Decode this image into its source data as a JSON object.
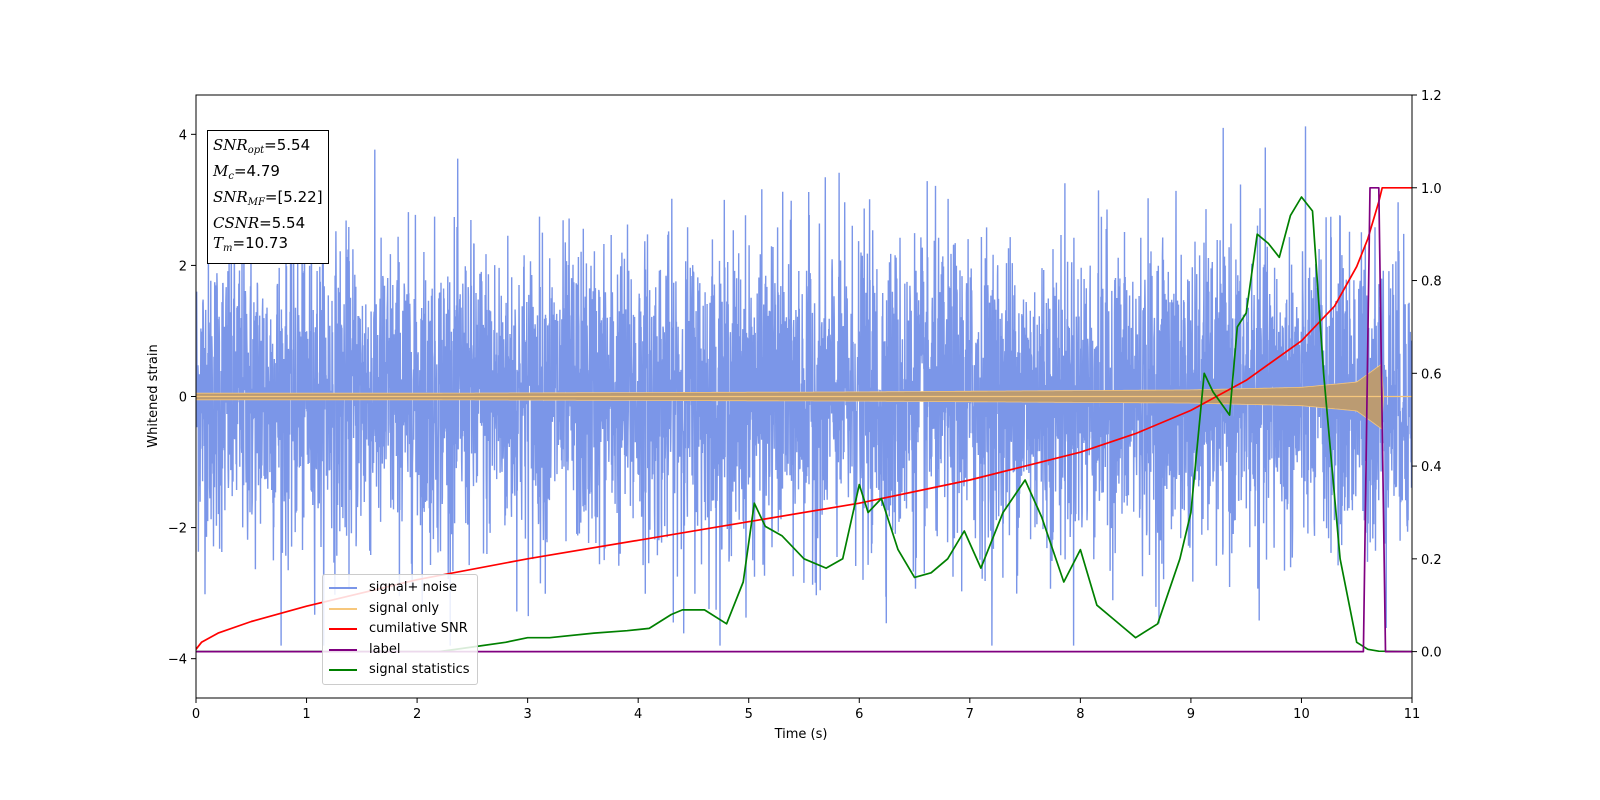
{
  "colors": {
    "signal_noise": "#7b96e8",
    "signal_only": "#f7c77c",
    "overlap": "#bb9b72",
    "cumulative_snr": "#ff0000",
    "label": "#800080",
    "signal_statistics": "#008000"
  },
  "infobox": {
    "snr_opt": {
      "name": "SNR",
      "sub": "opt",
      "value": "=5.54"
    },
    "mc": {
      "name": "M",
      "sub": "c",
      "value": "=4.79"
    },
    "snr_mf": {
      "name": "SNR",
      "sub": "MF",
      "value": "=[5.22]"
    },
    "csnr": {
      "name": "CSNR",
      "value": "=5.54"
    },
    "tm": {
      "name": "T",
      "sub": "m",
      "value": "=10.73"
    }
  },
  "chart_data": {
    "type": "line",
    "xlabel": "Time (s)",
    "ylabel": "Whitened strain",
    "xlim": [
      0,
      11
    ],
    "ylim": [
      -4.6,
      4.6
    ],
    "y2lim": [
      -0.1,
      1.2
    ],
    "xticks": [
      "0",
      "1",
      "2",
      "3",
      "4",
      "5",
      "6",
      "7",
      "8",
      "9",
      "10",
      "11"
    ],
    "yticks": [
      "−4",
      "−2",
      "0",
      "2",
      "4"
    ],
    "y2ticks": [
      "0.0",
      "0.2",
      "0.4",
      "0.6",
      "0.8",
      "1.0",
      "1.2"
    ],
    "legend_position": "lower-left",
    "series": [
      {
        "name": "signal+ noise",
        "axis": "left",
        "description_range": [
          -3.7,
          4.2
        ]
      },
      {
        "name": "signal only",
        "axis": "left",
        "envelope": {
          "t": [
            0,
            2,
            4,
            6,
            8,
            9,
            10,
            10.5,
            10.73
          ],
          "amp": [
            0.05,
            0.05,
            0.06,
            0.07,
            0.09,
            0.1,
            0.14,
            0.22,
            0.5
          ]
        }
      },
      {
        "name": "cumilative SNR",
        "axis": "right",
        "x": [
          0,
          0.05,
          0.2,
          0.5,
          1,
          2,
          3,
          4,
          5,
          6,
          7,
          8,
          8.5,
          9,
          9.5,
          10,
          10.3,
          10.5,
          10.6,
          10.7,
          10.73,
          11
        ],
        "y": [
          0.005,
          0.02,
          0.04,
          0.065,
          0.098,
          0.155,
          0.2,
          0.24,
          0.28,
          0.32,
          0.37,
          0.43,
          0.47,
          0.52,
          0.585,
          0.67,
          0.745,
          0.83,
          0.89,
          0.97,
          1.0,
          1.0
        ]
      },
      {
        "name": "label",
        "axis": "right",
        "x": [
          0,
          10.56,
          10.62,
          10.68,
          10.7,
          10.76,
          11
        ],
        "y": [
          0,
          0,
          1,
          1,
          1,
          0,
          0
        ]
      },
      {
        "name": "signal statistics",
        "axis": "right",
        "x": [
          0,
          2.2,
          2.5,
          2.8,
          3.0,
          3.2,
          3.6,
          3.9,
          4.1,
          4.3,
          4.4,
          4.6,
          4.8,
          4.95,
          5.05,
          5.15,
          5.3,
          5.5,
          5.7,
          5.85,
          6.0,
          6.08,
          6.2,
          6.35,
          6.5,
          6.65,
          6.8,
          6.95,
          7.1,
          7.3,
          7.5,
          7.65,
          7.85,
          8.0,
          8.15,
          8.3,
          8.5,
          8.7,
          8.9,
          9.0,
          9.12,
          9.2,
          9.35,
          9.42,
          9.5,
          9.6,
          9.7,
          9.8,
          9.9,
          10.0,
          10.1,
          10.2,
          10.35,
          10.5,
          10.6,
          10.7,
          11
        ],
        "y": [
          0,
          0,
          0.01,
          0.02,
          0.03,
          0.03,
          0.04,
          0.045,
          0.05,
          0.08,
          0.09,
          0.09,
          0.06,
          0.15,
          0.32,
          0.27,
          0.25,
          0.2,
          0.18,
          0.2,
          0.36,
          0.3,
          0.33,
          0.22,
          0.16,
          0.17,
          0.2,
          0.26,
          0.18,
          0.3,
          0.37,
          0.29,
          0.15,
          0.22,
          0.1,
          0.07,
          0.03,
          0.06,
          0.2,
          0.3,
          0.6,
          0.56,
          0.51,
          0.7,
          0.73,
          0.9,
          0.88,
          0.85,
          0.94,
          0.98,
          0.95,
          0.6,
          0.2,
          0.02,
          0.005,
          0.001,
          0
        ]
      }
    ]
  }
}
